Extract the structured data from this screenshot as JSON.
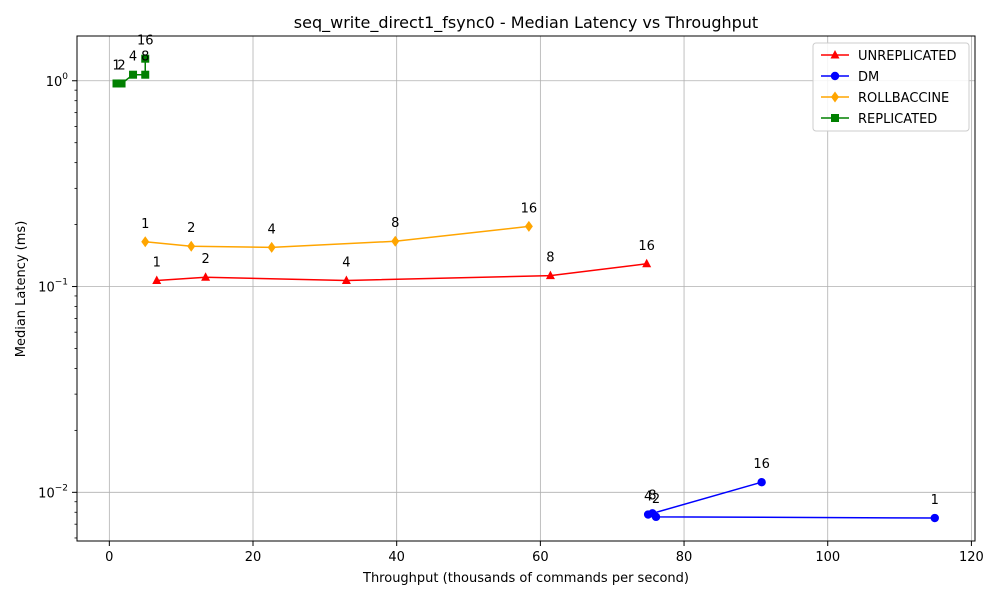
{
  "chart_data": {
    "type": "line",
    "title": "seq_write_direct1_fsync0 - Median Latency vs Throughput",
    "xlabel": "Throughput (thousands of commands per second)",
    "ylabel": "Median Latency (ms)",
    "xlim": [
      -4.5,
      120.5
    ],
    "ylim": [
      0.0058,
      1.65
    ],
    "yscale": "log",
    "grid": true,
    "legend_position": "top-right",
    "x_ticks": [
      0,
      20,
      40,
      60,
      80,
      100,
      120
    ],
    "x_tick_labels": [
      "0",
      "20",
      "40",
      "60",
      "80",
      "100",
      "120"
    ],
    "y_ticks": [
      0.01,
      0.1,
      1
    ],
    "y_tick_labels": [
      {
        "base": "10",
        "exp": "−2"
      },
      {
        "base": "10",
        "exp": "−1"
      },
      {
        "base": "10",
        "exp": "0"
      }
    ],
    "series": [
      {
        "name": "UNREPLICATED",
        "color": "#ff0000",
        "marker": "triangle",
        "points": [
          {
            "x": 6.6,
            "y": 0.107,
            "label": "1"
          },
          {
            "x": 13.4,
            "y": 0.111,
            "label": "2"
          },
          {
            "x": 33.0,
            "y": 0.107,
            "label": "4"
          },
          {
            "x": 61.4,
            "y": 0.113,
            "label": "8"
          },
          {
            "x": 74.8,
            "y": 0.129,
            "label": "16"
          }
        ]
      },
      {
        "name": "DM",
        "color": "#0000ff",
        "marker": "circle",
        "points": [
          {
            "x": 114.9,
            "y": 0.0075,
            "label": "1"
          },
          {
            "x": 76.1,
            "y": 0.0076,
            "label": "2"
          },
          {
            "x": 75.0,
            "y": 0.0078,
            "label": "4"
          },
          {
            "x": 75.6,
            "y": 0.0079,
            "label": "8"
          },
          {
            "x": 90.8,
            "y": 0.0112,
            "label": "16"
          }
        ]
      },
      {
        "name": "ROLLBACCINE",
        "color": "#ffa500",
        "marker": "diamond",
        "points": [
          {
            "x": 5.0,
            "y": 0.165,
            "label": "1"
          },
          {
            "x": 11.4,
            "y": 0.157,
            "label": "2"
          },
          {
            "x": 22.6,
            "y": 0.155,
            "label": "4"
          },
          {
            "x": 39.8,
            "y": 0.166,
            "label": "8"
          },
          {
            "x": 58.4,
            "y": 0.196,
            "label": "16"
          }
        ]
      },
      {
        "name": "REPLICATED",
        "color": "#008000",
        "marker": "square",
        "points": [
          {
            "x": 1.0,
            "y": 0.97,
            "label": "1"
          },
          {
            "x": 1.7,
            "y": 0.97,
            "label": "2"
          },
          {
            "x": 3.3,
            "y": 1.07,
            "label": "4"
          },
          {
            "x": 5.0,
            "y": 1.07,
            "label": "8"
          },
          {
            "x": 5.0,
            "y": 1.28,
            "label": "16"
          }
        ]
      }
    ]
  }
}
